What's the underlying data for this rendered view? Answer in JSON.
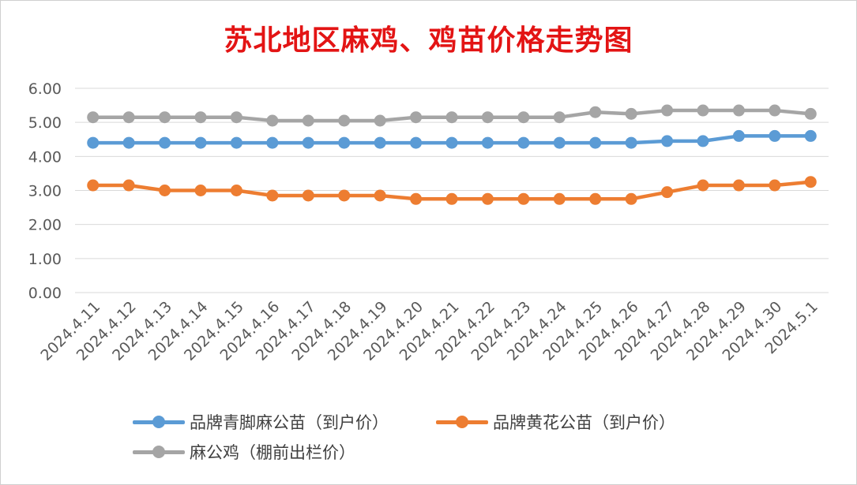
{
  "chart_data": {
    "type": "line",
    "title": "苏北地区麻鸡、鸡苗价格走势图",
    "categories": [
      "2024.4.11",
      "2024.4.12",
      "2024.4.13",
      "2024.4.14",
      "2024.4.15",
      "2024.4.16",
      "2024.4.17",
      "2024.4.18",
      "2024.4.19",
      "2024.4.20",
      "2024.4.21",
      "2024.4.22",
      "2024.4.23",
      "2024.4.24",
      "2024.4.25",
      "2024.4.26",
      "2024.4.27",
      "2024.4.28",
      "2024.4.29",
      "2024.4.30",
      "2024.5.1"
    ],
    "series": [
      {
        "name": "品牌青脚麻公苗（到户价）",
        "color": "#5b9bd5",
        "values": [
          4.4,
          4.4,
          4.4,
          4.4,
          4.4,
          4.4,
          4.4,
          4.4,
          4.4,
          4.4,
          4.4,
          4.4,
          4.4,
          4.4,
          4.4,
          4.4,
          4.45,
          4.45,
          4.6,
          4.6,
          4.6
        ]
      },
      {
        "name": "品牌黄花公苗（到户价）",
        "color": "#ed7d31",
        "values": [
          3.15,
          3.15,
          3.0,
          3.0,
          3.0,
          2.85,
          2.85,
          2.85,
          2.85,
          2.75,
          2.75,
          2.75,
          2.75,
          2.75,
          2.75,
          2.75,
          2.95,
          3.15,
          3.15,
          3.15,
          3.25
        ]
      },
      {
        "name": "麻公鸡（棚前出栏价）",
        "color": "#a5a5a5",
        "values": [
          5.15,
          5.15,
          5.15,
          5.15,
          5.15,
          5.05,
          5.05,
          5.05,
          5.05,
          5.15,
          5.15,
          5.15,
          5.15,
          5.15,
          5.3,
          5.25,
          5.35,
          5.35,
          5.35,
          5.35,
          5.25
        ]
      }
    ],
    "ylim": [
      0,
      6
    ],
    "yticks": [
      "0.00",
      "1.00",
      "2.00",
      "3.00",
      "4.00",
      "5.00",
      "6.00"
    ],
    "grid": true,
    "legend": "bottom"
  }
}
